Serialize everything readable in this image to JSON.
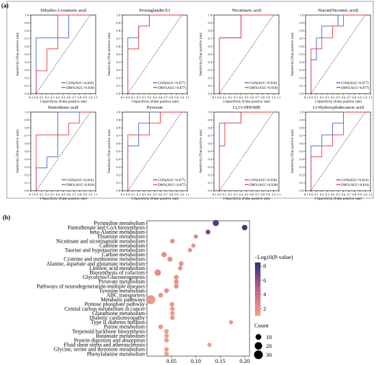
{
  "panel_a_label": "(a)",
  "panel_b_label": "(b)",
  "roc_common": {
    "xlabel": "1-Specificity (False positive rate)",
    "ylabel": "Sensitivity (True positive rate)",
    "x_ticks": [
      "-0.1",
      "0.0",
      "0.1",
      "0.2",
      "0.3",
      "0.4",
      "0.5",
      "0.6",
      "0.7",
      "0.8",
      "0.9",
      "1.0",
      "1.1"
    ],
    "y_ticks": [
      "0.0",
      "0.1",
      "0.2",
      "0.3",
      "0.4",
      "0.5",
      "0.6",
      "0.7",
      "0.8",
      "0.9",
      "1.0"
    ],
    "con_color": "#3a5fcd",
    "dmy_color": "#e8333a"
  },
  "chart_data": [
    {
      "type": "line",
      "title": "Dihydro-3-coumaric acid",
      "xlim": [
        -0.1,
        1.1
      ],
      "ylim": [
        0,
        1
      ],
      "series": [
        {
          "name": "CON(AUC=0.836)",
          "x": [
            0,
            0,
            0.6,
            0.6,
            1
          ],
          "y": [
            0,
            0.71,
            0.71,
            1,
            1
          ]
        },
        {
          "name": "DMY(AUC=0.836)",
          "x": [
            0,
            0,
            0.2,
            0.2,
            0.4,
            0.4,
            1
          ],
          "y": [
            0,
            0.29,
            0.29,
            0.57,
            0.57,
            1,
            1
          ]
        }
      ]
    },
    {
      "type": "line",
      "title": "Prostaglandin E1",
      "xlim": [
        -0.1,
        1.1
      ],
      "ylim": [
        0,
        1
      ],
      "series": [
        {
          "name": "CON(AUC=0.877)",
          "x": [
            0,
            0,
            0.2,
            0.2,
            0.4,
            0.4,
            1
          ],
          "y": [
            0,
            0.71,
            0.71,
            0.86,
            0.86,
            1,
            1
          ]
        },
        {
          "name": "DMY(AUC=0.877)",
          "x": [
            0,
            0,
            0.2,
            0.2,
            0.4,
            0.4,
            1
          ],
          "y": [
            0,
            0.57,
            0.57,
            0.86,
            0.86,
            1,
            1
          ]
        }
      ]
    },
    {
      "type": "line",
      "title": "Nicotinuric acid",
      "xlim": [
        -0.1,
        1.1
      ],
      "ylim": [
        0,
        1
      ],
      "series": [
        {
          "name": "CON(AUC=0.918)",
          "x": [
            0,
            0,
            0.4,
            0.4,
            1
          ],
          "y": [
            0,
            0.71,
            0.71,
            1,
            1
          ]
        },
        {
          "name": "DMY(AUC=0.918)",
          "x": [
            0,
            0,
            0.4,
            0.4,
            1
          ],
          "y": [
            0,
            0.71,
            0.71,
            1,
            1
          ]
        }
      ]
    },
    {
      "type": "line",
      "title": "Niacin(Nicotinic acid)",
      "xlim": [
        -0.1,
        1.1
      ],
      "ylim": [
        0,
        1
      ],
      "series": [
        {
          "name": "CON(AUC=0.877)",
          "x": [
            0,
            0,
            0.1,
            0.1,
            0.2,
            0.2,
            0.5,
            0.5,
            1
          ],
          "y": [
            0,
            0.43,
            0.43,
            0.71,
            0.71,
            0.86,
            0.86,
            1,
            1
          ]
        },
        {
          "name": "DMY(AUC=0.877)",
          "x": [
            0,
            0,
            0.2,
            0.2,
            0.4,
            0.4,
            0.6,
            0.6,
            1
          ],
          "y": [
            0,
            0.57,
            0.57,
            0.71,
            0.71,
            0.86,
            0.86,
            1,
            1
          ]
        }
      ]
    },
    {
      "type": "line",
      "title": "Pantothenic acid",
      "xlim": [
        -0.1,
        1.1
      ],
      "ylim": [
        0,
        1
      ],
      "series": [
        {
          "name": "CON(AUC=0.816)",
          "x": [
            0,
            0,
            0.2,
            0.2,
            0.4,
            0.4,
            1
          ],
          "y": [
            0,
            0.29,
            0.29,
            0.43,
            0.43,
            1,
            1
          ]
        },
        {
          "name": "DMY(AUC=0.816)",
          "x": [
            0,
            0,
            0.6,
            0.6,
            0.8,
            0.8,
            1
          ],
          "y": [
            0,
            0.71,
            0.71,
            0.86,
            0.86,
            1,
            1
          ]
        }
      ]
    },
    {
      "type": "line",
      "title": "Pyruvate",
      "xlim": [
        -0.1,
        1.1
      ],
      "ylim": [
        0,
        1
      ],
      "series": [
        {
          "name": "CON(AUC=0.877)",
          "x": [
            0,
            0,
            0.2,
            0.2,
            0.4,
            0.4,
            1
          ],
          "y": [
            0,
            0.57,
            0.57,
            0.86,
            0.86,
            1,
            1
          ]
        },
        {
          "name": "DMY(AUC=0.877)",
          "x": [
            0,
            0,
            0.4,
            0.4,
            0.6,
            0.6,
            1
          ],
          "y": [
            0,
            0.71,
            0.71,
            0.86,
            0.86,
            1,
            1
          ]
        }
      ]
    },
    {
      "type": "line",
      "title": "12,13-DHOME",
      "xlim": [
        -0.1,
        1.1
      ],
      "ylim": [
        0,
        1
      ],
      "series": [
        {
          "name": "CON(AUC=0.938)",
          "x": [
            0,
            0,
            0.4,
            0.4,
            1
          ],
          "y": [
            0,
            0.86,
            0.86,
            1,
            1
          ]
        },
        {
          "name": "DMY(AUC=0.938)",
          "x": [
            0,
            0,
            0.1,
            0.1,
            0.4,
            0.4,
            1
          ],
          "y": [
            0,
            0.57,
            0.57,
            0.86,
            0.86,
            1,
            1
          ]
        }
      ]
    },
    {
      "type": "line",
      "title": "12-Hydroxydodecanoic acid",
      "xlim": [
        -0.1,
        1.1
      ],
      "ylim": [
        0,
        1
      ],
      "series": [
        {
          "name": "CON(AUC=0.816)",
          "x": [
            0,
            0,
            0.2,
            0.2,
            0.4,
            0.4,
            0.6,
            0.6,
            1
          ],
          "y": [
            0,
            0.57,
            0.57,
            0.71,
            0.71,
            0.86,
            0.86,
            1,
            1
          ]
        },
        {
          "name": "DMY(AUC=0.816)",
          "x": [
            0,
            0,
            0.2,
            0.2,
            0.4,
            0.4,
            0.6,
            0.6,
            1
          ],
          "y": [
            0,
            0.43,
            0.43,
            0.57,
            0.57,
            0.71,
            0.71,
            1,
            1
          ]
        }
      ]
    },
    {
      "type": "scatter",
      "x_ticks": [
        "0.05",
        "0.10",
        "0.15",
        "0.20"
      ],
      "xlim": [
        0,
        0.21
      ],
      "legend_color_title": "−Log10(P-value)",
      "color_ticks": [
        "2",
        "4",
        "6",
        "8"
      ],
      "color_range": [
        1,
        8.5
      ],
      "legend_size_title": "Count",
      "size_ticks": [
        "10",
        "20",
        "30"
      ],
      "size_ticks_values": [
        10,
        20,
        30
      ],
      "low_color": "#f2a489",
      "high_color": "#30307a",
      "points": [
        {
          "pathway": "Pyrimidine metabolism",
          "x": 0.141,
          "neglog10p": 7.6,
          "count": 12
        },
        {
          "pathway": "Pantothenate and CoA biosynthesis",
          "x": 0.2,
          "neglog10p": 8.0,
          "count": 9
        },
        {
          "pathway": "beta-Alanine metabolism",
          "x": 0.125,
          "neglog10p": 6.4,
          "count": 6
        },
        {
          "pathway": "Thiamine metabolism",
          "x": 0.1,
          "neglog10p": 2.6,
          "count": 4
        },
        {
          "pathway": "Nicotinate and nicotinamide metabolism",
          "x": 0.052,
          "neglog10p": 2.2,
          "count": 5
        },
        {
          "pathway": "Caffeine metabolism",
          "x": 0.095,
          "neglog10p": 2.0,
          "count": 4
        },
        {
          "pathway": "Taurine and hypotaurine metabolism",
          "x": 0.088,
          "neglog10p": 2.0,
          "count": 4
        },
        {
          "pathway": "Carbon metabolism",
          "x": 0.035,
          "neglog10p": 2.1,
          "count": 8
        },
        {
          "pathway": "Cysteine and methionine metabolism",
          "x": 0.047,
          "neglog10p": 2.0,
          "count": 7
        },
        {
          "pathway": "Alanine, aspartate and glutamate metabolism",
          "x": 0.07,
          "neglog10p": 1.9,
          "count": 6
        },
        {
          "pathway": "Linoleic acid metabolism",
          "x": 0.068,
          "neglog10p": 1.9,
          "count": 5
        },
        {
          "pathway": "Biosynthesis of cofactors",
          "x": 0.022,
          "neglog10p": 2.2,
          "count": 14
        },
        {
          "pathway": "Glycolysis/Gluconeogenesis",
          "x": 0.06,
          "neglog10p": 1.8,
          "count": 6
        },
        {
          "pathway": "Pyruvate metabolism",
          "x": 0.06,
          "neglog10p": 1.8,
          "count": 6
        },
        {
          "pathway": "Pathways of neurodegeneration-multiple diseases",
          "x": 0.06,
          "neglog10p": 1.8,
          "count": 6
        },
        {
          "pathway": "Tyrosine metabolism",
          "x": 0.04,
          "neglog10p": 1.8,
          "count": 6
        },
        {
          "pathway": "ABC transporters",
          "x": 0.028,
          "neglog10p": 1.7,
          "count": 6
        },
        {
          "pathway": "Metabolic pathways",
          "x": 0.008,
          "neglog10p": 1.6,
          "count": 32
        },
        {
          "pathway": "Pentose phosphate pathway",
          "x": 0.051,
          "neglog10p": 1.6,
          "count": 5
        },
        {
          "pathway": "Central carbon metabolism in cancer",
          "x": 0.052,
          "neglog10p": 1.6,
          "count": 5
        },
        {
          "pathway": "Glutathione metabolism",
          "x": 0.052,
          "neglog10p": 1.6,
          "count": 5
        },
        {
          "pathway": "Diabetic cardiomyopathy",
          "x": 0.052,
          "neglog10p": 1.5,
          "count": 5
        },
        {
          "pathway": "Type II diabetes mellitus",
          "x": 0.172,
          "neglog10p": 1.5,
          "count": 4
        },
        {
          "pathway": "Purine metabolism",
          "x": 0.028,
          "neglog10p": 1.5,
          "count": 6
        },
        {
          "pathway": "Terpenoid backbone biosynthesis",
          "x": 0.04,
          "neglog10p": 1.4,
          "count": 5
        },
        {
          "pathway": "Butanoate metabolism",
          "x": 0.04,
          "neglog10p": 1.4,
          "count": 5
        },
        {
          "pathway": "Protein digestion and absorption",
          "x": 0.04,
          "neglog10p": 1.4,
          "count": 5
        },
        {
          "pathway": "Fluid shear stress and atherosclerosis",
          "x": 0.128,
          "neglog10p": 1.4,
          "count": 4
        },
        {
          "pathway": "Glycine, serine and threonine metabolism",
          "x": 0.04,
          "neglog10p": 1.3,
          "count": 5
        },
        {
          "pathway": "Phenylalanine metabolism",
          "x": 0.04,
          "neglog10p": 1.3,
          "count": 5
        }
      ]
    }
  ]
}
